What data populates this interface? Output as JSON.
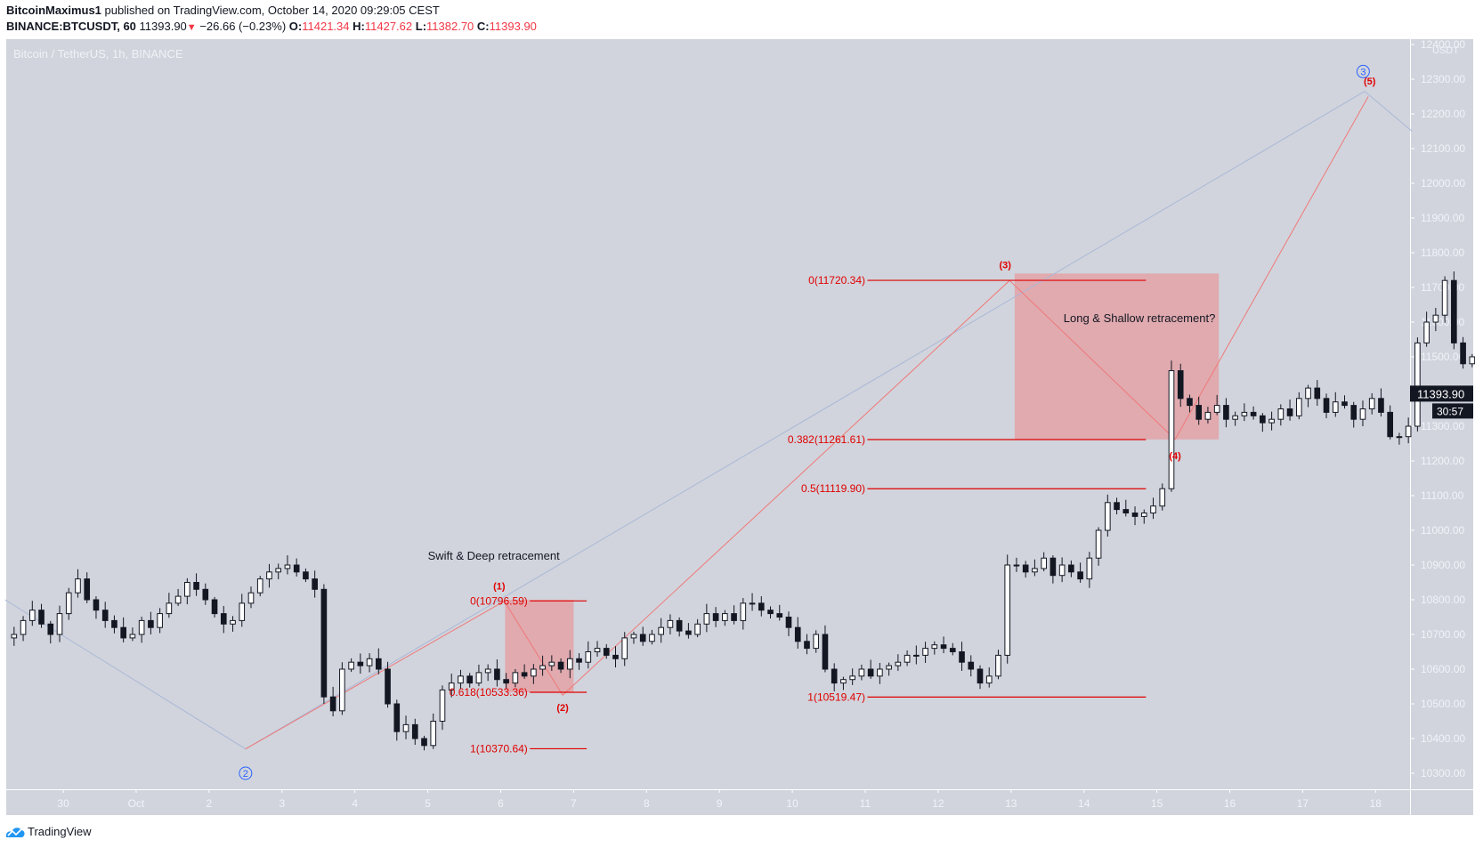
{
  "header": {
    "author": "BitcoinMaximus1",
    "published": "published on TradingView.com, October 14, 2020 09:29:05 CEST",
    "symbol": "BINANCE:BTCUSDT, 60",
    "last": "11393.90",
    "change": "−26.66 (−0.23%)",
    "o_label": "O:",
    "o": "11421.34",
    "h_label": "H:",
    "h": "11427.62",
    "l_label": "L:",
    "l": "11382.70",
    "c_label": "C:",
    "c": "11393.90"
  },
  "watermark": "Bitcoin / TetherUS, 1h, BINANCE",
  "footer": {
    "brand": "TradingView"
  },
  "colors": {
    "bg": "#d1d4dc",
    "axis_text": "#f0f3fa",
    "fib_red": "#e00000",
    "box_fill": "rgba(242,120,120,0.45)",
    "wave_red": "#f07878",
    "wave_blue": "#aab8d8",
    "circle_blue": "#2962ff",
    "candle": "#131722"
  },
  "price_axis": {
    "unit": "USDT",
    "current_price": "11393.90",
    "countdown": "30:57"
  },
  "chart_data": {
    "type": "candlestick",
    "title": "Bitcoin / TetherUS, 1h, BINANCE",
    "xlabel": "",
    "ylabel": "USDT",
    "ylim": [
      10250,
      12420
    ],
    "y_ticks": [
      10300,
      10400,
      10500,
      10600,
      10700,
      10800,
      10900,
      11000,
      11100,
      11200,
      11300,
      11400,
      11500,
      11600,
      11700,
      11800,
      11900,
      12000,
      12100,
      12200,
      12300,
      12400
    ],
    "x_ticks": [
      {
        "label": "30",
        "day": 0
      },
      {
        "label": "Oct",
        "day": 1
      },
      {
        "label": "2",
        "day": 2
      },
      {
        "label": "3",
        "day": 3
      },
      {
        "label": "4",
        "day": 4
      },
      {
        "label": "5",
        "day": 5
      },
      {
        "label": "6",
        "day": 6
      },
      {
        "label": "7",
        "day": 7
      },
      {
        "label": "8",
        "day": 8
      },
      {
        "label": "9",
        "day": 9
      },
      {
        "label": "10",
        "day": 10
      },
      {
        "label": "11",
        "day": 11
      },
      {
        "label": "12",
        "day": 12
      },
      {
        "label": "13",
        "day": 13
      },
      {
        "label": "14",
        "day": 14
      },
      {
        "label": "15",
        "day": 15
      },
      {
        "label": "16",
        "day": 16
      },
      {
        "label": "17",
        "day": 17
      },
      {
        "label": "18",
        "day": 18
      }
    ],
    "grid": false,
    "candle_step_days": 0.125,
    "candles_start_day": -0.8,
    "closes": [
      10690,
      10700,
      10740,
      10770,
      10730,
      10700,
      10760,
      10820,
      10860,
      10800,
      10770,
      10740,
      10720,
      10690,
      10700,
      10740,
      10720,
      10760,
      10790,
      10810,
      10850,
      10830,
      10800,
      10760,
      10730,
      10740,
      10790,
      10820,
      10860,
      10880,
      10890,
      10900,
      10880,
      10860,
      10830,
      10520,
      10480,
      10600,
      10620,
      10610,
      10630,
      10600,
      10500,
      10420,
      10440,
      10400,
      10380,
      10450,
      10540,
      10560,
      10580,
      10560,
      10590,
      10600,
      10570,
      10560,
      10590,
      10580,
      10600,
      10610,
      10620,
      10600,
      10630,
      10620,
      10650,
      10660,
      10640,
      10630,
      10690,
      10700,
      10680,
      10700,
      10720,
      10740,
      10710,
      10700,
      10730,
      10760,
      10740,
      10760,
      10740,
      10790,
      10790,
      10770,
      10760,
      10750,
      10720,
      10680,
      10660,
      10700,
      10600,
      10560,
      10570,
      10580,
      10600,
      10580,
      10600,
      10610,
      10620,
      10640,
      10640,
      10660,
      10670,
      10660,
      10650,
      10620,
      10600,
      10560,
      10580,
      10640,
      10900,
      10900,
      10880,
      10890,
      10920,
      10870,
      10900,
      10880,
      10860,
      10920,
      11000,
      11080,
      11060,
      11050,
      11040,
      11050,
      11070,
      11120,
      11460,
      11380,
      11360,
      11320,
      11340,
      11360,
      11320,
      11330,
      11340,
      11330,
      11310,
      11320,
      11350,
      11330,
      11380,
      11410,
      11380,
      11340,
      11370,
      11360,
      11320,
      11350,
      11380,
      11340,
      11270,
      11270,
      11300,
      11540,
      11600,
      11620,
      11720,
      11540,
      11480,
      11500,
      11460,
      11440,
      11520,
      11420,
      11360,
      11380,
      11420,
      11440,
      11460,
      11420,
      11380,
      11400,
      11420,
      11394
    ],
    "annotations": [
      {
        "text": "Swift & Deep retracement",
        "type": "note"
      },
      {
        "text": "Long & Shallow retracement?",
        "type": "note"
      },
      {
        "text": "(1)",
        "type": "wave"
      },
      {
        "text": "(2)",
        "type": "wave"
      },
      {
        "text": "(3)",
        "type": "wave"
      },
      {
        "text": "(4)",
        "type": "wave"
      },
      {
        "text": "(5)",
        "type": "wave"
      },
      {
        "text": "2",
        "type": "circled-wave"
      },
      {
        "text": "3",
        "type": "circled-wave"
      }
    ],
    "fib_levels_1": [
      {
        "label": "0(10796.59)",
        "price": 10796.59
      },
      {
        "label": "0.618(10533.36)",
        "price": 10533.36
      },
      {
        "label": "1(10370.64)",
        "price": 10370.64
      }
    ],
    "fib_levels_2": [
      {
        "label": "0(11720.34)",
        "price": 11720.34
      },
      {
        "label": "0.382(11261.61)",
        "price": 11261.61
      },
      {
        "label": "0.5(11119.90)",
        "price": 11119.9
      },
      {
        "label": "1(10519.47)",
        "price": 10519.47
      }
    ]
  }
}
